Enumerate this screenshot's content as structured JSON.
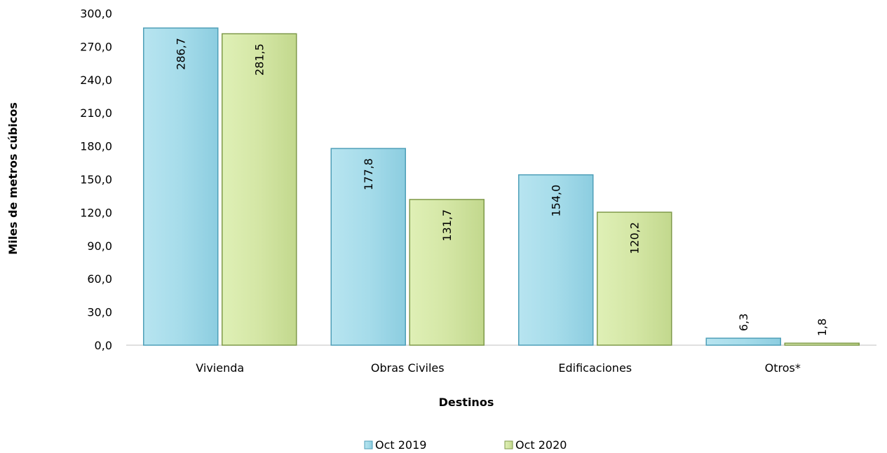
{
  "chart_data": {
    "type": "bar",
    "title": "",
    "xlabel": "Destinos",
    "ylabel": "Miles de metros cúbicos",
    "categories": [
      "Vivienda",
      "Obras Civiles",
      "Edificaciones",
      "Otros*"
    ],
    "series": [
      {
        "name": "Oct 2019",
        "values": [
          286.7,
          177.8,
          154.0,
          6.3
        ],
        "labels": [
          "286,7",
          "177,8",
          "154,0",
          "6,3"
        ],
        "color": "#a6dcea",
        "edge_color": "#4f9fb8"
      },
      {
        "name": "Oct 2020",
        "values": [
          281.5,
          131.7,
          120.2,
          1.8
        ],
        "labels": [
          "281,5",
          "131,7",
          "120,2",
          "1,8"
        ],
        "color": "#d4e6a5",
        "edge_color": "#7f9a4a"
      }
    ],
    "ylim": [
      0,
      300
    ],
    "yticks": [
      0,
      30,
      60,
      90,
      120,
      150,
      180,
      210,
      240,
      270,
      300
    ],
    "ytick_labels": [
      "0,0",
      "30,0",
      "60,0",
      "90,0",
      "120,0",
      "150,0",
      "180,0",
      "210,0",
      "240,0",
      "270,0",
      "300,0"
    ],
    "grid": false,
    "legend_position": "bottom-center"
  }
}
